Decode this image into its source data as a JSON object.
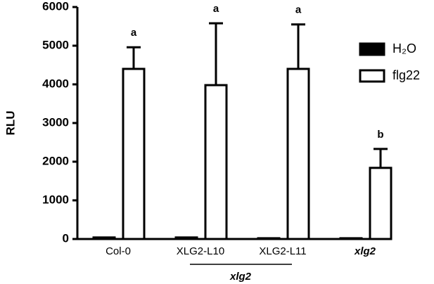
{
  "chart_data": {
    "type": "bar",
    "y_label": "RLU",
    "categories": [
      "Col-0",
      "XLG2-L10",
      "XLG2-L11",
      "xlg2"
    ],
    "series": [
      {
        "name": "H₂O",
        "color": "#000000",
        "values": [
          40,
          40,
          20,
          20
        ]
      },
      {
        "name": "flg22",
        "color": "#ffffff",
        "values": [
          4400,
          3980,
          4400,
          1840
        ],
        "errors": [
          560,
          1600,
          1150,
          490
        ],
        "letters": [
          "a",
          "a",
          "a",
          "b"
        ]
      }
    ],
    "group_label": "xlg2",
    "ylim": [
      0,
      6000
    ],
    "yticks": [
      0,
      1000,
      2000,
      3000,
      4000,
      5000,
      6000
    ],
    "legend": "upper right"
  }
}
